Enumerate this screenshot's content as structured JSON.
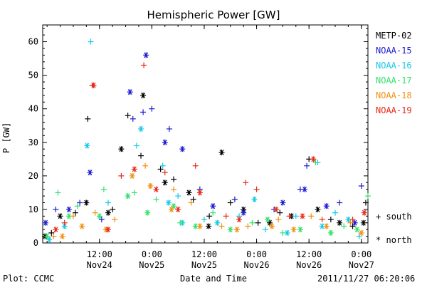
{
  "chart_data": {
    "type": "scatter",
    "title": "Hemispheric Power [GW]",
    "ylabel": "P [GW]",
    "xlabel": "Date and Time",
    "ylim": [
      0,
      65
    ],
    "yticks": [
      0,
      10,
      20,
      30,
      40,
      50,
      60
    ],
    "xlim": [
      "2011-11-23 23:00",
      "2011-11-27 01:30"
    ],
    "xticks": [
      {
        "at": "2011-11-24 12:00",
        "label1": "12:00",
        "label2": "Nov24"
      },
      {
        "at": "2011-11-25 00:00",
        "label1": "0:00",
        "label2": "Nov25"
      },
      {
        "at": "2011-11-25 12:00",
        "label1": "12:00",
        "label2": "Nov25"
      },
      {
        "at": "2011-11-26 00:00",
        "label1": "0:00",
        "label2": "Nov26"
      },
      {
        "at": "2011-11-26 12:00",
        "label1": "12:00",
        "label2": "Nov26"
      },
      {
        "at": "2011-11-27 00:00",
        "label1": "0:00",
        "label2": "Nov27"
      }
    ],
    "legend_placement": "right",
    "markers": {
      "south": "+",
      "north": "*"
    },
    "marker_legend": [
      {
        "symbol": "+",
        "label": "south"
      },
      {
        "symbol": "*",
        "label": "north"
      }
    ],
    "series": [
      {
        "name": "METP-02",
        "color": "#000000",
        "south": [
          [
            "2011-11-24 01:00",
            3
          ],
          [
            "2011-11-24 06:30",
            9
          ],
          [
            "2011-11-24 09:20",
            37
          ],
          [
            "2011-11-24 15:00",
            10
          ],
          [
            "2011-11-24 18:30",
            38
          ],
          [
            "2011-11-24 21:30",
            26
          ],
          [
            "2011-11-25 02:00",
            22
          ],
          [
            "2011-11-25 05:00",
            19
          ],
          [
            "2011-11-25 09:30",
            13
          ],
          [
            "2011-11-25 13:10",
            8
          ],
          [
            "2011-11-25 18:00",
            12
          ],
          [
            "2011-11-26 00:20",
            6
          ],
          [
            "2011-11-26 05:20",
            9
          ],
          [
            "2011-11-26 12:00",
            25
          ],
          [
            "2011-11-26 17:00",
            7
          ],
          [
            "2011-11-26 22:00",
            5
          ],
          [
            "2011-11-27 01:00",
            12
          ]
        ],
        "north": [
          [
            "2011-11-23 23:30",
            2
          ],
          [
            "2011-11-24 03:00",
            8
          ],
          [
            "2011-11-24 09:00",
            12
          ],
          [
            "2011-11-24 14:00",
            9
          ],
          [
            "2011-11-24 17:00",
            28
          ],
          [
            "2011-11-24 22:00",
            44
          ],
          [
            "2011-11-25 03:00",
            18
          ],
          [
            "2011-11-25 08:30",
            15
          ],
          [
            "2011-11-25 13:00",
            5
          ],
          [
            "2011-11-25 16:00",
            27
          ],
          [
            "2011-11-25 21:00",
            10
          ],
          [
            "2011-11-26 03:00",
            6
          ],
          [
            "2011-11-26 08:00",
            8
          ],
          [
            "2011-11-26 14:00",
            10
          ],
          [
            "2011-11-26 19:00",
            6
          ],
          [
            "2011-11-27 00:30",
            6
          ]
        ]
      },
      {
        "name": "NOAA-15",
        "color": "#1a1ad0",
        "south": [
          [
            "2011-11-24 02:00",
            10
          ],
          [
            "2011-11-24 07:30",
            12
          ],
          [
            "2011-11-24 12:30",
            7
          ],
          [
            "2011-11-24 19:40",
            37
          ],
          [
            "2011-11-24 22:00",
            39
          ],
          [
            "2011-11-25 00:00",
            40
          ],
          [
            "2011-11-25 04:00",
            34
          ],
          [
            "2011-11-25 11:00",
            16
          ],
          [
            "2011-11-25 19:00",
            13
          ],
          [
            "2011-11-26 04:00",
            10
          ],
          [
            "2011-11-26 10:00",
            16
          ],
          [
            "2011-11-26 11:30",
            23
          ],
          [
            "2011-11-26 19:00",
            12
          ],
          [
            "2011-11-27 00:00",
            17
          ]
        ],
        "north": [
          [
            "2011-11-23 23:40",
            6
          ],
          [
            "2011-11-24 05:00",
            10
          ],
          [
            "2011-11-24 09:50",
            21
          ],
          [
            "2011-11-24 19:00",
            45
          ],
          [
            "2011-11-24 22:40",
            56
          ],
          [
            "2011-11-25 03:00",
            30
          ],
          [
            "2011-11-25 07:00",
            28
          ],
          [
            "2011-11-25 14:00",
            11
          ],
          [
            "2011-11-25 21:00",
            9
          ],
          [
            "2011-11-26 06:00",
            12
          ],
          [
            "2011-11-26 11:00",
            16
          ],
          [
            "2011-11-26 16:00",
            11
          ],
          [
            "2011-11-26 22:30",
            6
          ]
        ]
      },
      {
        "name": "NOAA-16",
        "color": "#16c8e8",
        "south": [
          [
            "2011-11-24 10:00",
            60
          ],
          [
            "2011-11-24 14:00",
            12
          ],
          [
            "2011-11-24 20:30",
            29
          ],
          [
            "2011-11-25 02:30",
            23
          ],
          [
            "2011-11-25 06:00",
            14
          ],
          [
            "2011-11-25 12:00",
            7
          ],
          [
            "2011-11-25 20:00",
            8
          ],
          [
            "2011-11-26 02:00",
            4
          ],
          [
            "2011-11-26 09:00",
            8
          ],
          [
            "2011-11-26 14:00",
            24
          ],
          [
            "2011-11-26 18:00",
            9
          ],
          [
            "2011-11-26 23:30",
            2
          ]
        ],
        "north": [
          [
            "2011-11-24 00:30",
            1
          ],
          [
            "2011-11-24 04:00",
            5
          ],
          [
            "2011-11-24 09:10",
            29
          ],
          [
            "2011-11-24 21:30",
            34
          ],
          [
            "2011-11-25 03:50",
            12
          ],
          [
            "2011-11-25 07:00",
            6
          ],
          [
            "2011-11-25 15:00",
            6
          ],
          [
            "2011-11-25 23:30",
            13
          ],
          [
            "2011-11-26 07:00",
            3
          ],
          [
            "2011-11-26 15:00",
            5
          ],
          [
            "2011-11-26 21:00",
            7
          ]
        ]
      },
      {
        "name": "NOAA-17",
        "color": "#33e06a",
        "south": [
          [
            "2011-11-24 02:30",
            15
          ],
          [
            "2011-11-24 07:00",
            11
          ],
          [
            "2011-11-24 13:00",
            16
          ],
          [
            "2011-11-24 20:00",
            15
          ],
          [
            "2011-11-25 01:00",
            13
          ],
          [
            "2011-11-25 06:30",
            6
          ],
          [
            "2011-11-25 14:00",
            9
          ],
          [
            "2011-11-25 23:00",
            6
          ],
          [
            "2011-11-26 06:00",
            3
          ],
          [
            "2011-11-26 13:30",
            24
          ],
          [
            "2011-11-26 20:00",
            5
          ],
          [
            "2011-11-27 01:30",
            14
          ]
        ],
        "north": [
          [
            "2011-11-24 00:00",
            2
          ],
          [
            "2011-11-24 05:00",
            8
          ],
          [
            "2011-11-24 12:00",
            8
          ],
          [
            "2011-11-24 18:30",
            14
          ],
          [
            "2011-11-24 23:00",
            9
          ],
          [
            "2011-11-25 05:00",
            11
          ],
          [
            "2011-11-25 10:00",
            5
          ],
          [
            "2011-11-25 18:00",
            4
          ],
          [
            "2011-11-26 02:30",
            7
          ],
          [
            "2011-11-26 10:00",
            4
          ],
          [
            "2011-11-26 17:00",
            3
          ],
          [
            "2011-11-26 23:00",
            4
          ]
        ]
      },
      {
        "name": "NOAA-18",
        "color": "#f09010",
        "south": [
          [
            "2011-11-24 01:30",
            2
          ],
          [
            "2011-11-24 06:00",
            8
          ],
          [
            "2011-11-24 11:00",
            9
          ],
          [
            "2011-11-24 15:30",
            7
          ],
          [
            "2011-11-24 22:30",
            23
          ],
          [
            "2011-11-25 05:00",
            16
          ],
          [
            "2011-11-25 09:00",
            12
          ],
          [
            "2011-11-25 16:00",
            5
          ],
          [
            "2011-11-25 22:00",
            5
          ],
          [
            "2011-11-26 05:00",
            7
          ],
          [
            "2011-11-26 12:30",
            8
          ],
          [
            "2011-11-26 21:30",
            6
          ]
        ],
        "north": [
          [
            "2011-11-24 03:30",
            2
          ],
          [
            "2011-11-24 08:00",
            5
          ],
          [
            "2011-11-24 13:30",
            4
          ],
          [
            "2011-11-24 19:30",
            20
          ],
          [
            "2011-11-24 23:40",
            17
          ],
          [
            "2011-11-25 04:30",
            10
          ],
          [
            "2011-11-25 11:00",
            5
          ],
          [
            "2011-11-25 19:30",
            4
          ],
          [
            "2011-11-26 03:30",
            5
          ],
          [
            "2011-11-26 08:30",
            4
          ],
          [
            "2011-11-26 16:00",
            5
          ],
          [
            "2011-11-27 00:00",
            3
          ]
        ]
      },
      {
        "name": "NOAA-19",
        "color": "#e82818",
        "south": [
          [
            "2011-11-24 04:00",
            6
          ],
          [
            "2011-11-24 10:20",
            47
          ],
          [
            "2011-11-24 17:00",
            20
          ],
          [
            "2011-11-24 22:10",
            53
          ],
          [
            "2011-11-25 03:00",
            21
          ],
          [
            "2011-11-25 10:00",
            23
          ],
          [
            "2011-11-25 17:00",
            8
          ],
          [
            "2011-11-25 21:30",
            18
          ],
          [
            "2011-11-26 00:00",
            16
          ],
          [
            "2011-11-26 07:30",
            8
          ],
          [
            "2011-11-26 15:00",
            7
          ],
          [
            "2011-11-26 22:00",
            7
          ]
        ],
        "north": [
          [
            "2011-11-24 02:00",
            4
          ],
          [
            "2011-11-24 10:40",
            47
          ],
          [
            "2011-11-24 14:00",
            4
          ],
          [
            "2011-11-24 20:00",
            22
          ],
          [
            "2011-11-25 01:00",
            16
          ],
          [
            "2011-11-25 06:00",
            10
          ],
          [
            "2011-11-25 11:00",
            15
          ],
          [
            "2011-11-25 20:00",
            7
          ],
          [
            "2011-11-26 04:30",
            10
          ],
          [
            "2011-11-26 10:30",
            8
          ],
          [
            "2011-11-26 13:00",
            25
          ],
          [
            "2011-11-27 00:40",
            9
          ]
        ]
      }
    ]
  },
  "footer": {
    "plot_label": "Plot: CCMC",
    "timestamp": "2011/11/27 06:20:06"
  }
}
